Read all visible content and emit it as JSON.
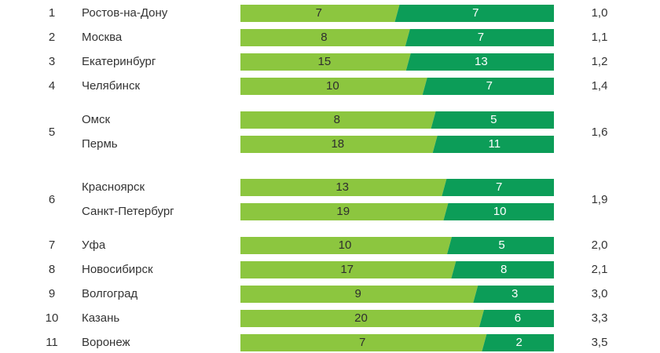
{
  "colors": {
    "light": "#8cc63f",
    "dark": "#0c9d58",
    "text": "#333333"
  },
  "chart_data": {
    "type": "bar",
    "stacked": true,
    "groups": [
      {
        "rank": "1",
        "ratio": "1,0",
        "rows": [
          {
            "city": "Ростов-на-Дону",
            "a": 7,
            "b": 7
          }
        ]
      },
      {
        "rank": "2",
        "ratio": "1,1",
        "rows": [
          {
            "city": "Москва",
            "a": 8,
            "b": 7
          }
        ]
      },
      {
        "rank": "3",
        "ratio": "1,2",
        "rows": [
          {
            "city": "Екатеринбург",
            "a": 15,
            "b": 13
          }
        ]
      },
      {
        "rank": "4",
        "ratio": "1,4",
        "rows": [
          {
            "city": "Челябинск",
            "a": 10,
            "b": 7
          }
        ]
      },
      {
        "rank": "5",
        "ratio": "1,6",
        "rows": [
          {
            "city": "Омск",
            "a": 8,
            "b": 5
          },
          {
            "city": "Пермь",
            "a": 18,
            "b": 11
          }
        ]
      },
      {
        "rank": "6",
        "ratio": "1,9",
        "rows": [
          {
            "city": "Красноярск",
            "a": 13,
            "b": 7
          },
          {
            "city": "Санкт-Петербург",
            "a": 19,
            "b": 10
          }
        ]
      },
      {
        "rank": "7",
        "ratio": "2,0",
        "rows": [
          {
            "city": "Уфа",
            "a": 10,
            "b": 5
          }
        ]
      },
      {
        "rank": "8",
        "ratio": "2,1",
        "rows": [
          {
            "city": "Новосибирск",
            "a": 17,
            "b": 8
          }
        ]
      },
      {
        "rank": "9",
        "ratio": "3,0",
        "rows": [
          {
            "city": "Волгоград",
            "a": 9,
            "b": 3
          }
        ]
      },
      {
        "rank": "10",
        "ratio": "3,3",
        "rows": [
          {
            "city": "Казань",
            "a": 20,
            "b": 6
          }
        ]
      },
      {
        "rank": "11",
        "ratio": "3,5",
        "rows": [
          {
            "city": "Воронеж",
            "a": 7,
            "b": 2
          }
        ]
      }
    ]
  }
}
